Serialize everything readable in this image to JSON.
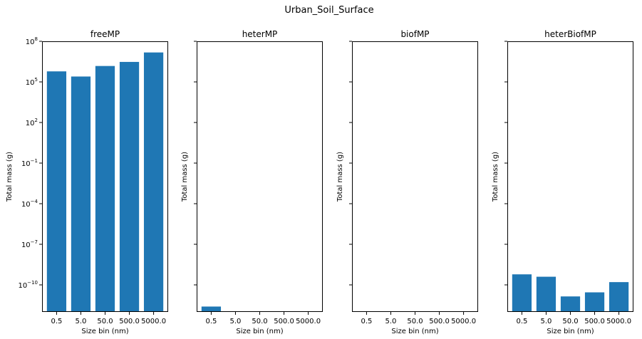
{
  "figure": {
    "suptitle": "Urban_Soil_Surface"
  },
  "colors": {
    "bar": "#1f77b4",
    "axis": "#000000",
    "background": "#ffffff"
  },
  "chart_data": [
    {
      "type": "bar",
      "title": "freeMP",
      "xlabel": "Size bin (nm)",
      "ylabel": "Total mass (g)",
      "yscale": "log",
      "ylim": [
        1e-12,
        100000000.0
      ],
      "show_ytick_labels": true,
      "categories": [
        "0.5",
        "5.0",
        "50.0",
        "500.0",
        "5000.0"
      ],
      "values": [
        600000,
        250000,
        1500000,
        3000000,
        15000000
      ]
    },
    {
      "type": "bar",
      "title": "heterMP",
      "xlabel": "Size bin (nm)",
      "ylabel": "Total mass (g)",
      "yscale": "log",
      "ylim": [
        1e-12,
        100000000.0
      ],
      "show_ytick_labels": false,
      "categories": [
        "0.5",
        "5.0",
        "50.0",
        "500.0",
        "5000.0"
      ],
      "values": [
        2.5e-12,
        null,
        null,
        null,
        null
      ]
    },
    {
      "type": "bar",
      "title": "biofMP",
      "xlabel": "Size bin (nm)",
      "ylabel": "Total mass (g)",
      "yscale": "log",
      "ylim": [
        1e-12,
        100000000.0
      ],
      "show_ytick_labels": false,
      "categories": [
        "0.5",
        "5.0",
        "50.0",
        "500.0",
        "5000.0"
      ],
      "values": [
        null,
        null,
        null,
        null,
        null
      ]
    },
    {
      "type": "bar",
      "title": "heterBiofMP",
      "xlabel": "Size bin (nm)",
      "ylabel": "Total mass (g)",
      "yscale": "log",
      "ylim": [
        1e-12,
        100000000.0
      ],
      "show_ytick_labels": false,
      "categories": [
        "0.5",
        "5.0",
        "50.0",
        "500.0",
        "5000.0"
      ],
      "values": [
        6e-10,
        4e-10,
        1.4e-11,
        2.8e-11,
        1.6e-10
      ]
    }
  ],
  "y_tick_exponents": [
    8,
    5,
    2,
    -1,
    -4,
    -7,
    -10
  ]
}
